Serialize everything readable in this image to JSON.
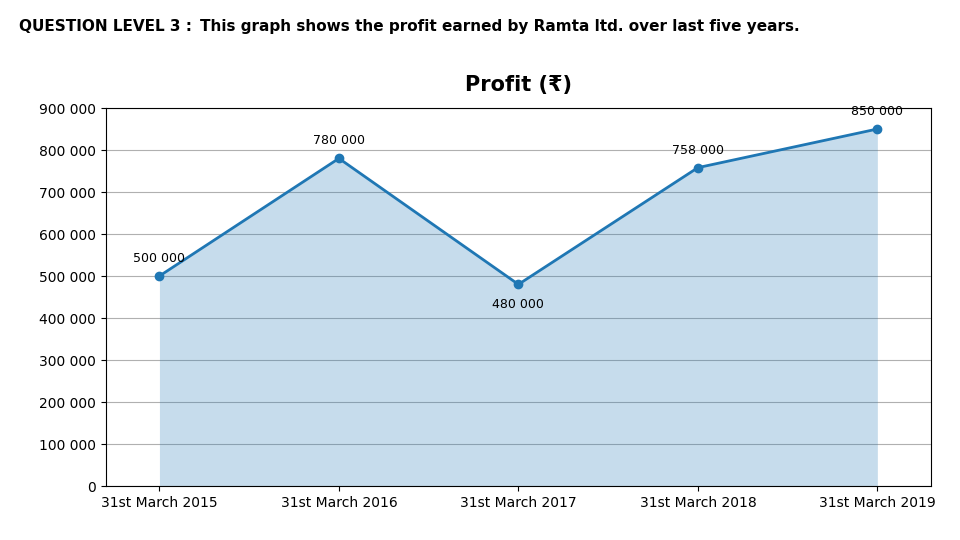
{
  "chart_data": {
    "type": "area",
    "title": "Profit (₹)",
    "annotations": [
      "QUESTION LEVEL 3 :",
      "This graph shows the profit earned by Ramta ltd. over last five years."
    ],
    "categories": [
      "31st March 2015",
      "31st March 2016",
      "31st March 2017",
      "31st March 2018",
      "31st March 2019"
    ],
    "values": [
      500000,
      780000,
      480000,
      758000,
      850000
    ],
    "data_labels": true,
    "value_labels": [
      "500 000",
      "780 000",
      "480 000",
      "758 000",
      "850 000"
    ],
    "marker": "o",
    "ylim": [
      0,
      900000
    ],
    "yticks": [
      0,
      {
        "value": 100000,
        "label": "100 000"
      },
      {
        "value": 200000,
        "label": "200 000"
      },
      {
        "value": 300000,
        "label": "300 000"
      },
      {
        "value": 400000,
        "label": "400 000"
      },
      {
        "value": 500000,
        "label": "500 000"
      },
      {
        "value": 600000,
        "label": "600 000"
      },
      {
        "value": 700000,
        "label": "700 000"
      },
      {
        "value": 800000,
        "label": "800 000"
      },
      {
        "value": 900000,
        "label": "900 000"
      }
    ],
    "grid": true
  }
}
